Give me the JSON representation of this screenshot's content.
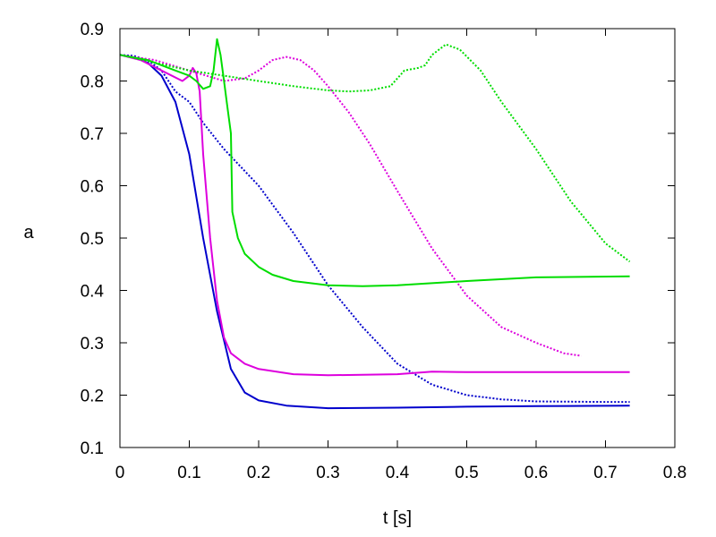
{
  "chart_data": {
    "type": "line",
    "title": "",
    "xlabel": "t [s]",
    "ylabel": "a",
    "xlim": [
      0,
      0.8
    ],
    "ylim": [
      0.1,
      0.9
    ],
    "xticks": [
      0,
      0.1,
      0.2,
      0.3,
      0.4,
      0.5,
      0.6,
      0.7,
      0.8
    ],
    "yticks": [
      0.1,
      0.2,
      0.3,
      0.4,
      0.5,
      0.6,
      0.7,
      0.8,
      0.9
    ],
    "xtick_labels": [
      "0",
      "0.1",
      "0.2",
      "0.3",
      "0.4",
      "0.5",
      "0.6",
      "0.7",
      "0.8"
    ],
    "ytick_labels": [
      "0.1",
      "0.2",
      "0.3",
      "0.4",
      "0.5",
      "0.6",
      "0.7",
      "0.8",
      "0.9"
    ],
    "grid": false,
    "legend": "none",
    "series": [
      {
        "color": "#0000cc",
        "style": "solid",
        "points": [
          [
            0,
            0.85
          ],
          [
            0.02,
            0.845
          ],
          [
            0.04,
            0.835
          ],
          [
            0.06,
            0.81
          ],
          [
            0.08,
            0.76
          ],
          [
            0.1,
            0.66
          ],
          [
            0.12,
            0.5
          ],
          [
            0.14,
            0.36
          ],
          [
            0.16,
            0.25
          ],
          [
            0.18,
            0.205
          ],
          [
            0.2,
            0.19
          ],
          [
            0.24,
            0.18
          ],
          [
            0.3,
            0.175
          ],
          [
            0.4,
            0.176
          ],
          [
            0.5,
            0.178
          ],
          [
            0.6,
            0.179
          ],
          [
            0.735,
            0.18
          ]
        ]
      },
      {
        "color": "#0000cc",
        "style": "dotted",
        "points": [
          [
            0,
            0.85
          ],
          [
            0.02,
            0.848
          ],
          [
            0.04,
            0.84
          ],
          [
            0.06,
            0.82
          ],
          [
            0.08,
            0.78
          ],
          [
            0.1,
            0.76
          ],
          [
            0.12,
            0.72
          ],
          [
            0.15,
            0.67
          ],
          [
            0.2,
            0.6
          ],
          [
            0.25,
            0.51
          ],
          [
            0.3,
            0.41
          ],
          [
            0.35,
            0.33
          ],
          [
            0.4,
            0.26
          ],
          [
            0.45,
            0.22
          ],
          [
            0.5,
            0.2
          ],
          [
            0.55,
            0.192
          ],
          [
            0.6,
            0.188
          ],
          [
            0.7,
            0.187
          ],
          [
            0.735,
            0.187
          ]
        ]
      },
      {
        "color": "#dd00dd",
        "style": "solid",
        "points": [
          [
            0,
            0.85
          ],
          [
            0.03,
            0.84
          ],
          [
            0.06,
            0.82
          ],
          [
            0.09,
            0.8
          ],
          [
            0.1,
            0.81
          ],
          [
            0.105,
            0.825
          ],
          [
            0.11,
            0.815
          ],
          [
            0.115,
            0.78
          ],
          [
            0.12,
            0.66
          ],
          [
            0.13,
            0.5
          ],
          [
            0.14,
            0.38
          ],
          [
            0.15,
            0.31
          ],
          [
            0.16,
            0.28
          ],
          [
            0.18,
            0.26
          ],
          [
            0.2,
            0.25
          ],
          [
            0.25,
            0.24
          ],
          [
            0.3,
            0.238
          ],
          [
            0.4,
            0.24
          ],
          [
            0.45,
            0.245
          ],
          [
            0.5,
            0.244
          ],
          [
            0.6,
            0.244
          ],
          [
            0.735,
            0.244
          ]
        ]
      },
      {
        "color": "#dd00dd",
        "style": "dotted",
        "points": [
          [
            0,
            0.85
          ],
          [
            0.05,
            0.84
          ],
          [
            0.1,
            0.82
          ],
          [
            0.15,
            0.8
          ],
          [
            0.18,
            0.805
          ],
          [
            0.2,
            0.82
          ],
          [
            0.22,
            0.84
          ],
          [
            0.24,
            0.846
          ],
          [
            0.26,
            0.84
          ],
          [
            0.28,
            0.82
          ],
          [
            0.3,
            0.79
          ],
          [
            0.33,
            0.74
          ],
          [
            0.36,
            0.68
          ],
          [
            0.4,
            0.59
          ],
          [
            0.45,
            0.48
          ],
          [
            0.5,
            0.39
          ],
          [
            0.55,
            0.33
          ],
          [
            0.6,
            0.3
          ],
          [
            0.64,
            0.28
          ],
          [
            0.665,
            0.275
          ]
        ]
      },
      {
        "color": "#00dd00",
        "style": "solid",
        "points": [
          [
            0,
            0.85
          ],
          [
            0.04,
            0.84
          ],
          [
            0.08,
            0.82
          ],
          [
            0.1,
            0.81
          ],
          [
            0.11,
            0.8
          ],
          [
            0.12,
            0.785
          ],
          [
            0.13,
            0.79
          ],
          [
            0.135,
            0.82
          ],
          [
            0.14,
            0.88
          ],
          [
            0.145,
            0.85
          ],
          [
            0.15,
            0.8
          ],
          [
            0.155,
            0.75
          ],
          [
            0.16,
            0.7
          ],
          [
            0.162,
            0.55
          ],
          [
            0.17,
            0.5
          ],
          [
            0.18,
            0.47
          ],
          [
            0.2,
            0.445
          ],
          [
            0.22,
            0.43
          ],
          [
            0.25,
            0.418
          ],
          [
            0.3,
            0.41
          ],
          [
            0.35,
            0.408
          ],
          [
            0.4,
            0.41
          ],
          [
            0.5,
            0.418
          ],
          [
            0.6,
            0.425
          ],
          [
            0.735,
            0.427
          ]
        ]
      },
      {
        "color": "#00dd00",
        "style": "dotted",
        "points": [
          [
            0,
            0.85
          ],
          [
            0.05,
            0.835
          ],
          [
            0.1,
            0.82
          ],
          [
            0.15,
            0.81
          ],
          [
            0.2,
            0.8
          ],
          [
            0.25,
            0.79
          ],
          [
            0.3,
            0.782
          ],
          [
            0.33,
            0.78
          ],
          [
            0.36,
            0.782
          ],
          [
            0.39,
            0.79
          ],
          [
            0.41,
            0.82
          ],
          [
            0.43,
            0.825
          ],
          [
            0.44,
            0.83
          ],
          [
            0.45,
            0.85
          ],
          [
            0.47,
            0.87
          ],
          [
            0.49,
            0.86
          ],
          [
            0.52,
            0.82
          ],
          [
            0.55,
            0.76
          ],
          [
            0.6,
            0.67
          ],
          [
            0.65,
            0.57
          ],
          [
            0.7,
            0.49
          ],
          [
            0.735,
            0.455
          ]
        ]
      }
    ]
  }
}
